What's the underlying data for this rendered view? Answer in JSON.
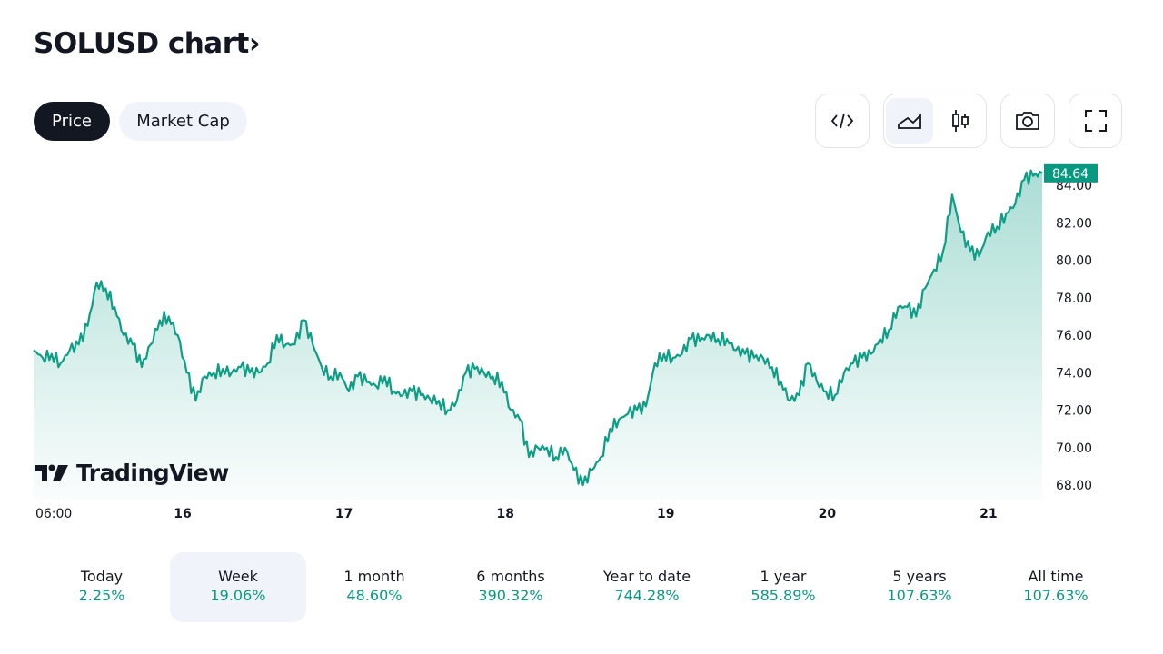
{
  "title": "SOLUSD chart",
  "title_chevron": "›",
  "tabs": [
    {
      "label": "Price",
      "active": true
    },
    {
      "label": "Market Cap",
      "active": false
    }
  ],
  "toolbar": {
    "icons": [
      "embed-code-icon",
      "area-chart-icon",
      "candlestick-icon",
      "camera-icon",
      "fullscreen-icon"
    ]
  },
  "colors": {
    "line": "#0e9e86",
    "accent": "#089981",
    "dark": "#131722"
  },
  "logo_text": "TradingView",
  "chart_data": {
    "type": "area",
    "symbol": "SOLUSD",
    "last_price_label": "84.64",
    "yticks": [
      "68.00",
      "70.00",
      "72.00",
      "74.00",
      "76.00",
      "78.00",
      "80.00",
      "82.00",
      "84.00"
    ],
    "ylim": [
      67.5,
      85.6
    ],
    "xticks": [
      {
        "label": "06:00",
        "pos": 0.018
      },
      {
        "label": "16",
        "pos": 0.139
      },
      {
        "label": "17",
        "pos": 0.299
      },
      {
        "label": "18",
        "pos": 0.459
      },
      {
        "label": "19",
        "pos": 0.618
      },
      {
        "label": "20",
        "pos": 0.778
      },
      {
        "label": "21",
        "pos": 0.938
      }
    ],
    "values": [
      75.2,
      74.8,
      75,
      74.5,
      75.2,
      75.5,
      76.5,
      78.8,
      78.5,
      77.5,
      76,
      75.5,
      74.3,
      75.5,
      76.8,
      77,
      76,
      74,
      72.5,
      73.8,
      74,
      74.2,
      74,
      74.3,
      74,
      74,
      74.5,
      76,
      75.5,
      75.5,
      76.8,
      75.5,
      74.3,
      73.8,
      74,
      73,
      73.8,
      73.5,
      73.3,
      73.8,
      73,
      72.8,
      73,
      72.8,
      72.6,
      72.5,
      72,
      72.5,
      74,
      74.2,
      74,
      73.8,
      73.5,
      72,
      71.5,
      69.5,
      70,
      70,
      69.5,
      70,
      68.8,
      68,
      68.8,
      69.5,
      71,
      71.5,
      71.8,
      72,
      72.2,
      74.5,
      75,
      74.8,
      75,
      75.8,
      75.7,
      76,
      75.8,
      75.8,
      75.2,
      75,
      74.8,
      74.8,
      74.3,
      73.5,
      72.5,
      72.8,
      74.5,
      73.5,
      73,
      72.8,
      74,
      74.5,
      74.8,
      75,
      75.8,
      76.3,
      77.5,
      77.5,
      77,
      78.5,
      79.5,
      80.5,
      83.5,
      81.5,
      80.5,
      80.2,
      81.5,
      81.8,
      82.5,
      83,
      84.3,
      84.5,
      84.64
    ]
  },
  "periods": [
    {
      "label": "Today",
      "change": "2.25%"
    },
    {
      "label": "Week",
      "change": "19.06%",
      "active": true
    },
    {
      "label": "1 month",
      "change": "48.60%"
    },
    {
      "label": "6 months",
      "change": "390.32%"
    },
    {
      "label": "Year to date",
      "change": "744.28%"
    },
    {
      "label": "1 year",
      "change": "585.89%"
    },
    {
      "label": "5 years",
      "change": "107.63%"
    },
    {
      "label": "All time",
      "change": "107.63%"
    }
  ]
}
